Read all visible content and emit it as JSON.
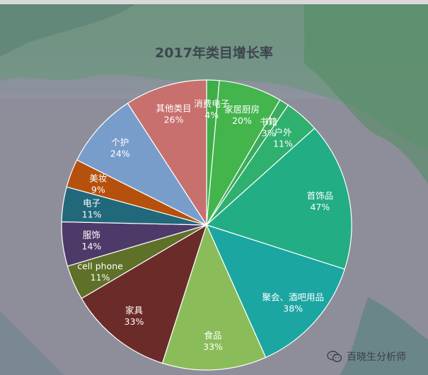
{
  "chart_data": {
    "type": "pie",
    "title": "2017年类目增长率",
    "slices": [
      {
        "label": "消费电子",
        "display": "4%",
        "value": 4,
        "color": "#3fae49"
      },
      {
        "label": "家居厨房",
        "display": "20%",
        "value": 20,
        "color": "#44b54c"
      },
      {
        "label": "书籍",
        "display": "3%",
        "value": 3,
        "color": "#3aac5d"
      },
      {
        "label": "户外",
        "display": "11%",
        "value": 11,
        "color": "#2fb06f"
      },
      {
        "label": "首饰品",
        "display": "47%",
        "value": 47,
        "color": "#22ad85"
      },
      {
        "label": "聚会、酒吧用品",
        "display": "38%",
        "value": 38,
        "color": "#1ba6a2"
      },
      {
        "label": "食品",
        "display": "33%",
        "value": 33,
        "color": "#8abd5a"
      },
      {
        "label": "家具",
        "display": "33%",
        "value": 33,
        "color": "#6b2b29"
      },
      {
        "label": "cell phone",
        "display": "11%",
        "value": 11,
        "color": "#5f7028"
      },
      {
        "label": "服饰",
        "display": "14%",
        "value": 14,
        "color": "#4e3a68"
      },
      {
        "label": "电子",
        "display": "11%",
        "value": 11,
        "color": "#22687b"
      },
      {
        "label": "美妆",
        "display": "9%",
        "value": 9,
        "color": "#b5510d"
      },
      {
        "label": "个护",
        "display": "24%",
        "value": 24,
        "color": "#789dcb"
      },
      {
        "label": "其他类目",
        "display": "26%",
        "value": 26,
        "color": "#c7706e"
      }
    ]
  },
  "watermark": {
    "icon": "wechat-icon",
    "text": "百晓生分析师"
  }
}
